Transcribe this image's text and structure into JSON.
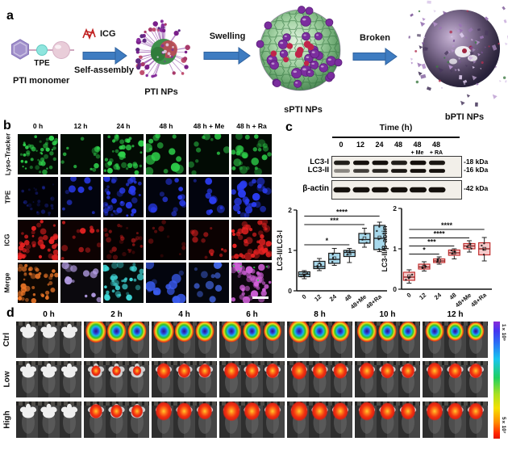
{
  "panel_a": {
    "label": "a",
    "pti_monomer": "PTI monomer",
    "tpe": "TPE",
    "icg": "ICG",
    "self_assembly": "Self-assembly",
    "swelling": "Swelling",
    "broken": "Broken",
    "pti_nps": "PTI NPs",
    "spti_nps": "sPTI NPs",
    "bpti_nps": "bPTI NPs",
    "arrow_color": "#3e7cc1"
  },
  "panel_b": {
    "label": "b",
    "columns": [
      "0 h",
      "12 h",
      "24 h",
      "48 h",
      "48 h + Me",
      "48 h + Ra"
    ],
    "rows": [
      {
        "label": "Lyso-Tracker",
        "color": "#2ed04a",
        "counts": [
          48,
          13,
          40,
          15,
          11,
          28
        ],
        "radii": [
          2.2,
          3.2,
          2.8,
          4.2,
          3.4,
          3.8
        ],
        "dim": [
          1,
          1,
          1,
          1,
          0.85,
          0.9
        ]
      },
      {
        "label": "TPE",
        "color": "#2a3cf0",
        "counts": [
          26,
          9,
          38,
          13,
          10,
          30
        ],
        "radii": [
          1.8,
          3.0,
          2.8,
          4.4,
          3.6,
          3.4
        ],
        "dim": [
          0.38,
          0.95,
          1,
          1,
          1,
          1
        ]
      },
      {
        "label": "ICG",
        "color": "#e82222",
        "counts": [
          42,
          12,
          26,
          10,
          12,
          46
        ],
        "radii": [
          2.6,
          3.0,
          2.4,
          2.6,
          3.0,
          3.4
        ],
        "dim": [
          1,
          1,
          0.55,
          0.4,
          0.85,
          1
        ]
      },
      {
        "label": "Merge",
        "colors": [
          "#f07828",
          "#b8a0e8",
          "#40d8d8",
          "#3a5cf0",
          "#4468e8",
          "#d060d8"
        ],
        "counts": [
          42,
          12,
          36,
          14,
          11,
          46
        ],
        "radii": [
          2.6,
          3.4,
          3.0,
          4.4,
          3.6,
          3.2
        ],
        "dim": [
          1,
          1,
          1,
          1,
          1,
          1
        ]
      }
    ]
  },
  "panel_c": {
    "label": "c",
    "blot_title": "Time (h)",
    "lanes": [
      "0",
      "12",
      "24",
      "48",
      "48",
      "48"
    ],
    "lane_subs": [
      "",
      "",
      "",
      "",
      "+ Me",
      "+ RA"
    ],
    "rows": [
      {
        "label": "LC3-I",
        "kda": "-18 kDa",
        "intensities": [
          0.9,
          1,
          1,
          0.9,
          1,
          0.95
        ]
      },
      {
        "label": "LC3-II",
        "kda": "-16 kDa",
        "intensities": [
          0.3,
          0.7,
          0.85,
          0.95,
          1,
          1
        ]
      },
      {
        "label": "β-actin",
        "kda": "-42 kDa",
        "intensities": [
          1,
          1,
          1,
          1,
          1,
          1
        ]
      }
    ]
  },
  "chart_data": [
    {
      "type": "box",
      "ylabel": "LC3-II/LC3-I",
      "ylim": [
        0,
        2
      ],
      "yticks": [
        0,
        1,
        2
      ],
      "categories": [
        "0",
        "12",
        "24",
        "48",
        "48+Me",
        "48+Ra"
      ],
      "box_fill": "#a8d9ec",
      "box_stroke": "#1a1a1a",
      "median_color": "#1a1a1a",
      "boxes": [
        {
          "lo": 0.3,
          "q1": 0.35,
          "med": 0.41,
          "q3": 0.47,
          "hi": 0.5
        },
        {
          "lo": 0.5,
          "q1": 0.55,
          "med": 0.6,
          "q3": 0.73,
          "hi": 0.8
        },
        {
          "lo": 0.63,
          "q1": 0.68,
          "med": 0.78,
          "q3": 0.93,
          "hi": 1.05
        },
        {
          "lo": 0.7,
          "q1": 0.85,
          "med": 0.95,
          "q3": 1.0,
          "hi": 1.05
        },
        {
          "lo": 1.08,
          "q1": 1.18,
          "med": 1.27,
          "q3": 1.42,
          "hi": 1.55
        },
        {
          "lo": 0.97,
          "q1": 1.02,
          "med": 1.3,
          "q3": 1.62,
          "hi": 1.7
        }
      ],
      "significance": [
        {
          "from": 0,
          "to": 3,
          "y": 1.14,
          "stars": "*"
        },
        {
          "from": 0,
          "to": 4,
          "y": 1.64,
          "stars": "***"
        },
        {
          "from": 0,
          "to": 5,
          "y": 1.85,
          "stars": "****"
        }
      ]
    },
    {
      "type": "box",
      "ylabel": "LC3-II/β-actin",
      "ylim": [
        0,
        2
      ],
      "yticks": [
        0,
        1,
        2
      ],
      "categories": [
        "0",
        "12",
        "24",
        "48",
        "48+Me",
        "48+Ra"
      ],
      "box_fill": "#f7caca",
      "box_stroke": "#c23030",
      "median_color": "#8a1a1a",
      "boxes": [
        {
          "lo": 0.15,
          "q1": 0.22,
          "med": 0.3,
          "q3": 0.42,
          "hi": 0.48
        },
        {
          "lo": 0.45,
          "q1": 0.5,
          "med": 0.55,
          "q3": 0.62,
          "hi": 0.68
        },
        {
          "lo": 0.62,
          "q1": 0.66,
          "med": 0.7,
          "q3": 0.75,
          "hi": 0.8
        },
        {
          "lo": 0.75,
          "q1": 0.84,
          "med": 0.9,
          "q3": 0.97,
          "hi": 1.0
        },
        {
          "lo": 0.92,
          "q1": 1.0,
          "med": 1.07,
          "q3": 1.13,
          "hi": 1.2
        },
        {
          "lo": 0.7,
          "q1": 0.85,
          "med": 1.0,
          "q3": 1.15,
          "hi": 1.28
        }
      ],
      "significance": [
        {
          "from": 0,
          "to": 2,
          "y": 0.87,
          "stars": "*"
        },
        {
          "from": 0,
          "to": 3,
          "y": 1.07,
          "stars": "***"
        },
        {
          "from": 0,
          "to": 4,
          "y": 1.27,
          "stars": "****"
        },
        {
          "from": 0,
          "to": 5,
          "y": 1.48,
          "stars": "****"
        }
      ]
    }
  ],
  "panel_d": {
    "label": "d",
    "columns": [
      "0 h",
      "2 h",
      "4 h",
      "6 h",
      "8 h",
      "10 h",
      "12 h"
    ],
    "rows": [
      {
        "label": "Ctrl",
        "type": "rainbow",
        "intensity": [
          0,
          1,
          1,
          0.95,
          1,
          0.95,
          0.9
        ]
      },
      {
        "label": "Low",
        "type": "red",
        "intensity": [
          0,
          0.55,
          0.8,
          0.85,
          0.9,
          0.85,
          0.85
        ]
      },
      {
        "label": "High",
        "type": "red",
        "intensity": [
          0,
          0.75,
          0.95,
          1,
          1,
          0.95,
          0.95
        ]
      }
    ],
    "colorbar": {
      "top_label": "1×10⁹",
      "bottom_label": "5×10⁷"
    }
  }
}
